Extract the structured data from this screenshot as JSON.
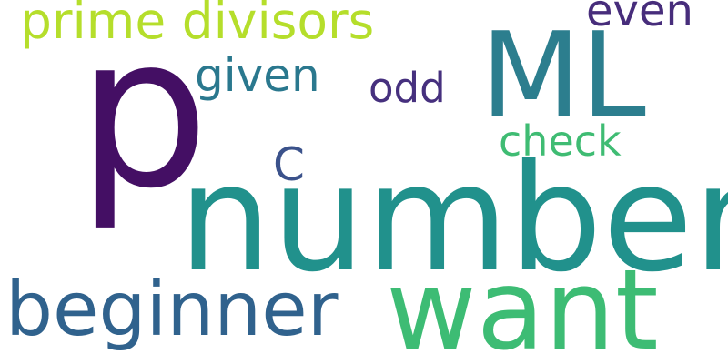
{
  "cloud": {
    "background": "#ffffff",
    "words": [
      {
        "id": "p",
        "text": "p",
        "color": "#440f64",
        "orientation": "horizontal"
      },
      {
        "id": "number",
        "text": "number",
        "color": "#21918c",
        "orientation": "horizontal"
      },
      {
        "id": "ml",
        "text": "ML",
        "color": "#2c7e8e",
        "orientation": "horizontal"
      },
      {
        "id": "want",
        "text": "want",
        "color": "#3dbc74",
        "orientation": "horizontal"
      },
      {
        "id": "beginner",
        "text": "beginner",
        "color": "#30628d",
        "orientation": "horizontal"
      },
      {
        "id": "prime",
        "text": "prime divisors",
        "color": "#b5de2b",
        "orientation": "horizontal"
      },
      {
        "id": "given",
        "text": "given",
        "color": "#2a788e",
        "orientation": "horizontal"
      },
      {
        "id": "check",
        "text": "check",
        "color": "#3fbc73",
        "orientation": "horizontal"
      },
      {
        "id": "odd",
        "text": "odd",
        "color": "#46307e",
        "orientation": "horizontal"
      },
      {
        "id": "even",
        "text": "even",
        "color": "#472d7b",
        "orientation": "horizontal"
      },
      {
        "id": "c",
        "text": "C",
        "color": "#3b528b",
        "orientation": "horizontal"
      }
    ]
  }
}
